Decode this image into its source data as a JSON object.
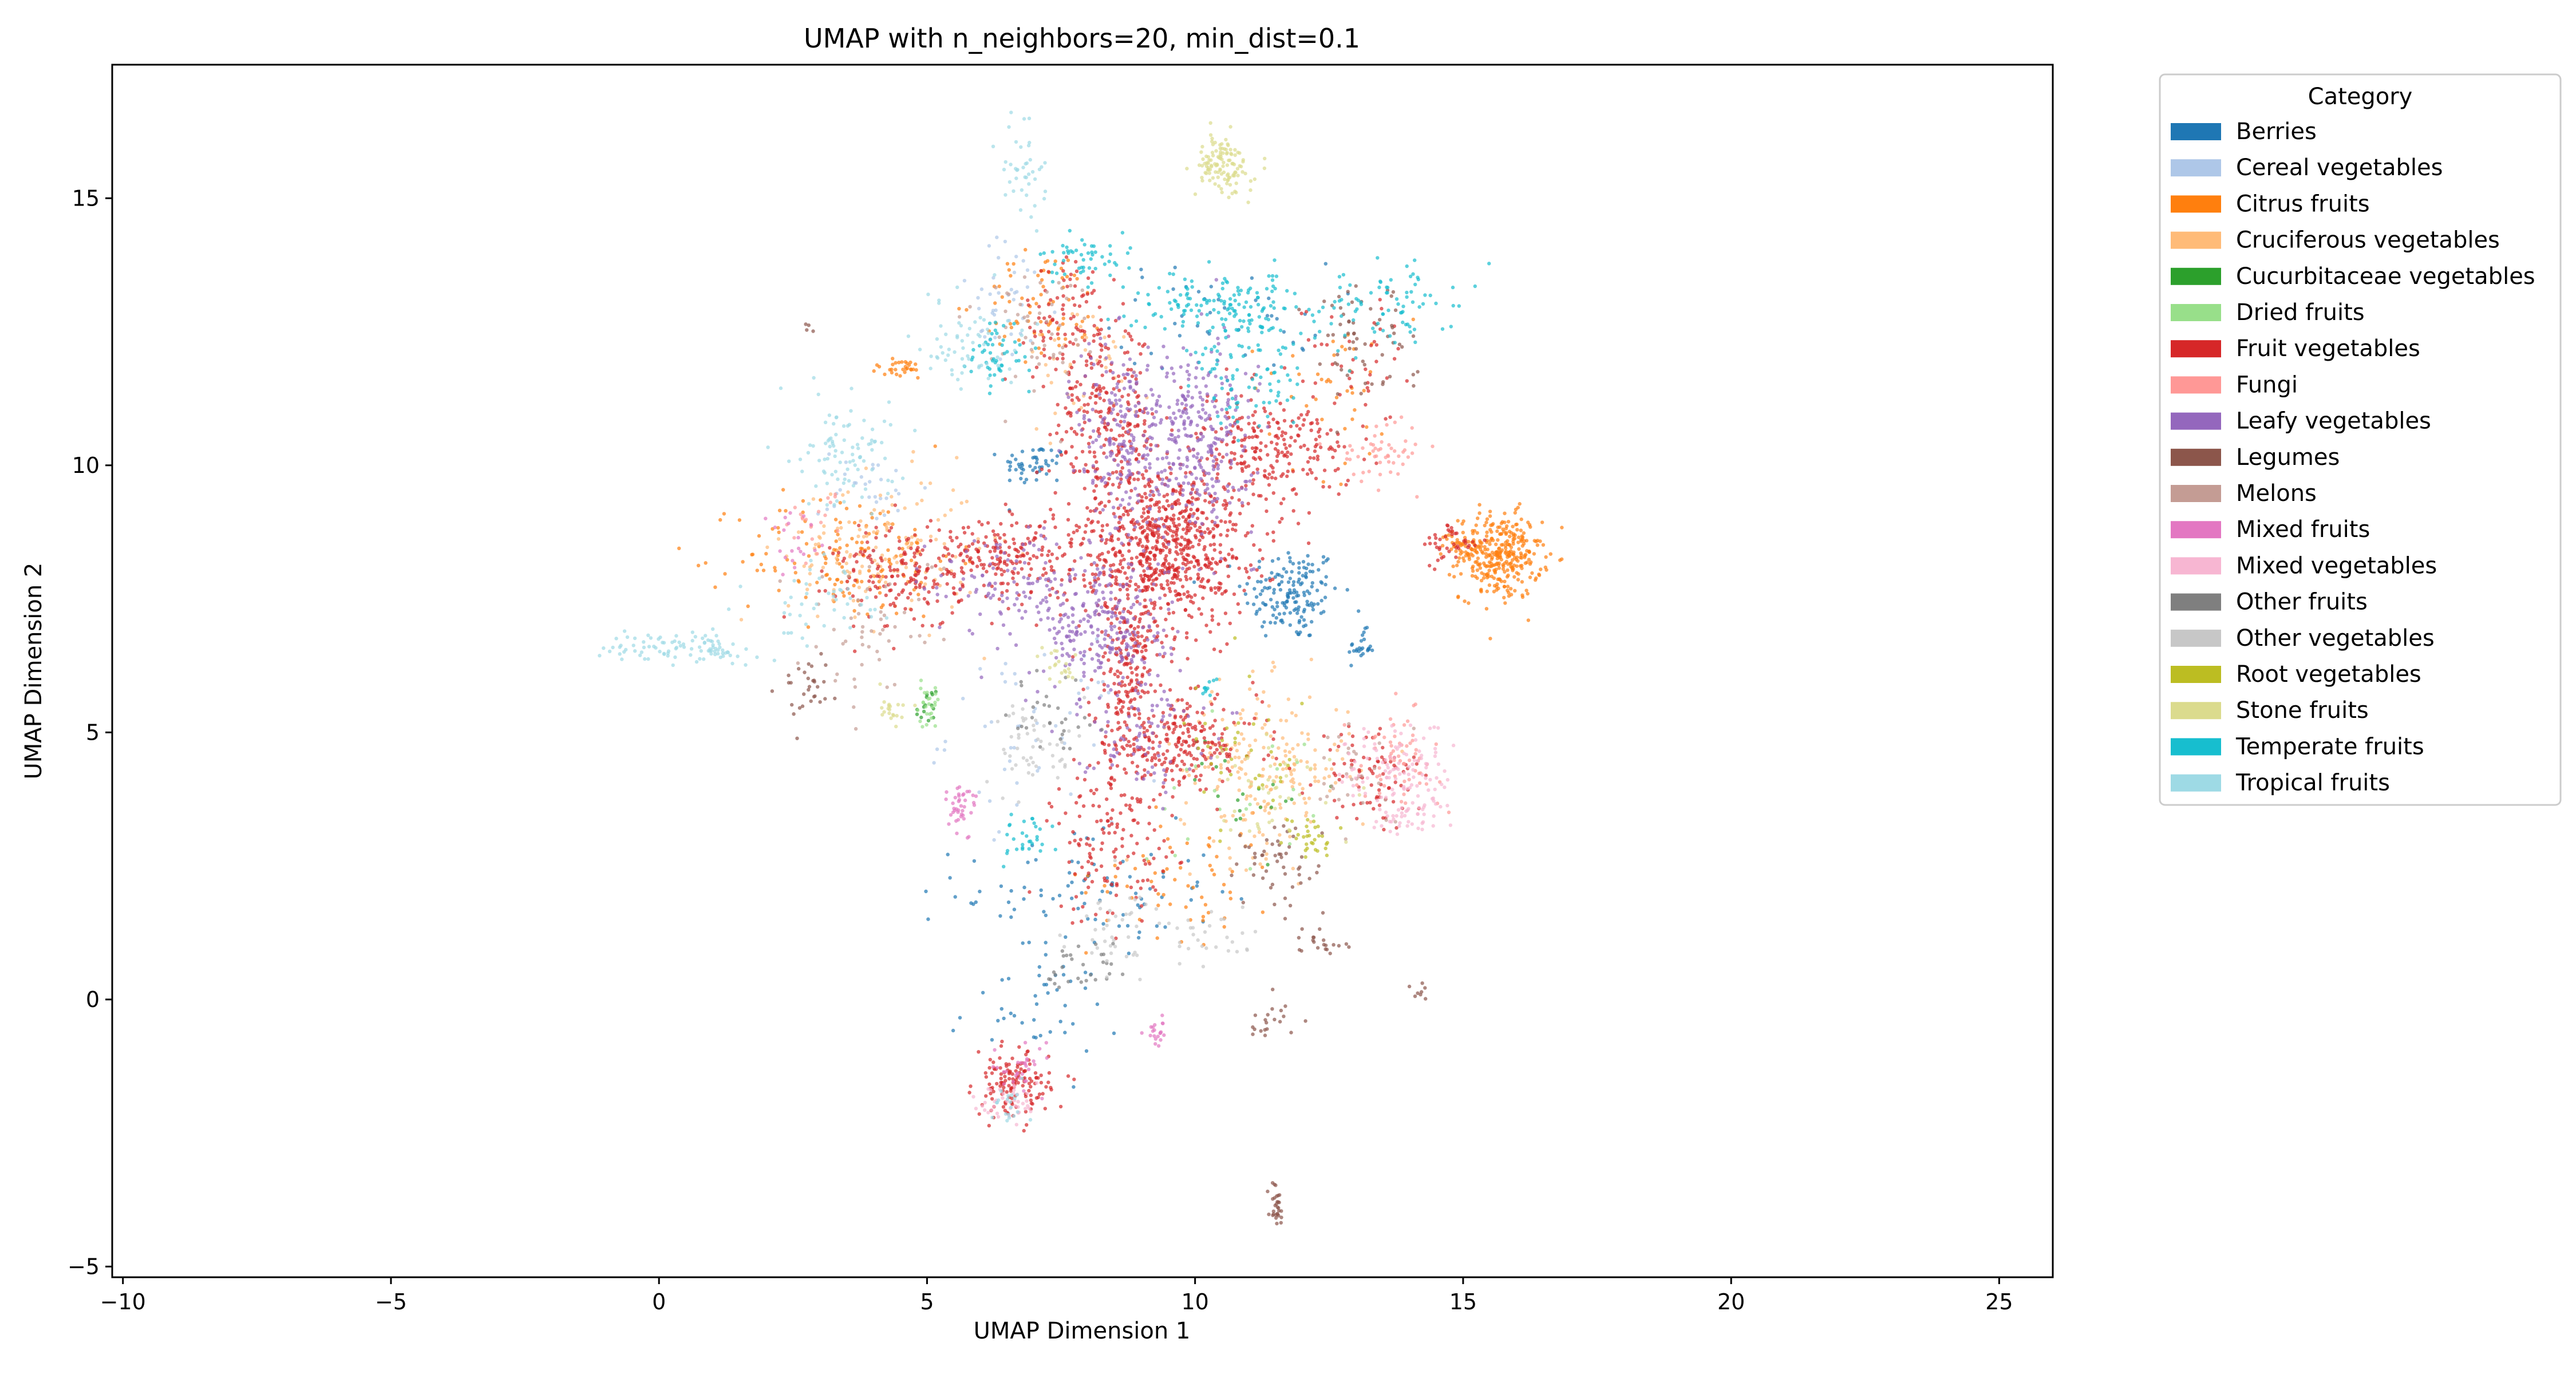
{
  "chart_data": {
    "type": "scatter",
    "title": "UMAP with n_neighbors=20, min_dist=0.1",
    "xlabel": "UMAP Dimension 1",
    "ylabel": "UMAP Dimension 2",
    "xlim": [
      -10.2,
      26
    ],
    "ylim": [
      -5.2,
      17.5
    ],
    "xticks": [
      -10,
      -5,
      0,
      5,
      10,
      15,
      20,
      25
    ],
    "yticks": [
      -5,
      0,
      5,
      10,
      15
    ],
    "grid": false,
    "legend": {
      "title": "Category",
      "placement": "outside-top-right"
    },
    "series": [
      {
        "name": "Berries",
        "color": "#1f77b4",
        "clusters": [
          {
            "c": [
              11.8,
              7.6
            ],
            "s": [
              0.45,
              0.45
            ],
            "n": 160
          },
          {
            "c": [
              7.0,
              10.0
            ],
            "s": [
              0.3,
              0.2
            ],
            "n": 50
          },
          {
            "c": [
              13.1,
              6.6
            ],
            "s": [
              0.12,
              0.15
            ],
            "n": 25
          },
          {
            "c": [
              8.0,
              2.0
            ],
            "s": [
              1.2,
              0.6
            ],
            "n": 90
          },
          {
            "c": [
              10.5,
              12.8
            ],
            "s": [
              1.0,
              0.5
            ],
            "n": 40
          },
          {
            "c": [
              7.0,
              -0.2
            ],
            "s": [
              0.8,
              0.5
            ],
            "n": 40
          }
        ]
      },
      {
        "name": "Cereal vegetables",
        "color": "#aec7e8",
        "clusters": [
          {
            "c": [
              7.0,
              5.0
            ],
            "s": [
              0.8,
              0.8
            ],
            "n": 50
          },
          {
            "c": [
              6.5,
              13.0
            ],
            "s": [
              0.5,
              0.6
            ],
            "n": 40
          },
          {
            "c": [
              4.0,
              9.5
            ],
            "s": [
              0.5,
              0.4
            ],
            "n": 30
          }
        ]
      },
      {
        "name": "Citrus fruits",
        "color": "#ff7f0e",
        "clusters": [
          {
            "c": [
              15.7,
              8.3
            ],
            "s": [
              0.38,
              0.4
            ],
            "n": 320
          },
          {
            "c": [
              15.0,
              8.5
            ],
            "s": [
              0.2,
              0.15
            ],
            "n": 40
          },
          {
            "c": [
              3.5,
              8.3
            ],
            "s": [
              1.0,
              0.6
            ],
            "n": 140
          },
          {
            "c": [
              4.5,
              11.8
            ],
            "s": [
              0.3,
              0.1
            ],
            "n": 30
          },
          {
            "c": [
              7.2,
              13.0
            ],
            "s": [
              0.6,
              0.5
            ],
            "n": 70
          },
          {
            "c": [
              9.8,
              2.3
            ],
            "s": [
              0.9,
              0.6
            ],
            "n": 60
          },
          {
            "c": [
              12.5,
              11.5
            ],
            "s": [
              0.8,
              0.8
            ],
            "n": 40
          }
        ]
      },
      {
        "name": "Cruciferous vegetables",
        "color": "#ffbb78",
        "clusters": [
          {
            "c": [
              11.3,
              4.3
            ],
            "s": [
              0.8,
              0.8
            ],
            "n": 200
          },
          {
            "c": [
              4.2,
              8.4
            ],
            "s": [
              0.9,
              0.7
            ],
            "n": 150
          },
          {
            "c": [
              8.0,
              12.0
            ],
            "s": [
              0.6,
              0.6
            ],
            "n": 40
          }
        ]
      },
      {
        "name": "Cucurbitaceae vegetables",
        "color": "#2ca02c",
        "clusters": [
          {
            "c": [
              5.0,
              5.4
            ],
            "s": [
              0.1,
              0.2
            ],
            "n": 15
          },
          {
            "c": [
              11.0,
              4.0
            ],
            "s": [
              0.6,
              0.6
            ],
            "n": 20
          }
        ]
      },
      {
        "name": "Dried fruits",
        "color": "#98df8a",
        "clusters": [
          {
            "c": [
              5.0,
              5.5
            ],
            "s": [
              0.12,
              0.2
            ],
            "n": 25
          },
          {
            "c": [
              10.5,
              4.0
            ],
            "s": [
              0.8,
              0.8
            ],
            "n": 20
          }
        ]
      },
      {
        "name": "Fruit vegetables",
        "color": "#d62728",
        "clusters": [
          {
            "c": [
              9.5,
              8.5
            ],
            "s": [
              0.75,
              0.75
            ],
            "n": 700
          },
          {
            "c": [
              8.8,
              6.2
            ],
            "s": [
              0.35,
              1.0
            ],
            "n": 250
          },
          {
            "c": [
              9.8,
              4.8
            ],
            "s": [
              0.7,
              0.4
            ],
            "n": 200
          },
          {
            "c": [
              8.3,
              10.8
            ],
            "s": [
              0.5,
              0.9
            ],
            "n": 250
          },
          {
            "c": [
              11.3,
              10.3
            ],
            "s": [
              0.8,
              0.5
            ],
            "n": 250
          },
          {
            "c": [
              6.5,
              8.3
            ],
            "s": [
              0.8,
              0.4
            ],
            "n": 220
          },
          {
            "c": [
              4.5,
              7.9
            ],
            "s": [
              0.6,
              0.5
            ],
            "n": 150
          },
          {
            "c": [
              8.5,
              3.0
            ],
            "s": [
              0.6,
              0.8
            ],
            "n": 150
          },
          {
            "c": [
              6.6,
              -1.6
            ],
            "s": [
              0.35,
              0.3
            ],
            "n": 140
          },
          {
            "c": [
              13.3,
              4.2
            ],
            "s": [
              0.5,
              0.5
            ],
            "n": 80
          },
          {
            "c": [
              14.8,
              8.5
            ],
            "s": [
              0.25,
              0.2
            ],
            "n": 40
          },
          {
            "c": [
              7.5,
              12.8
            ],
            "s": [
              0.4,
              0.6
            ],
            "n": 70
          },
          {
            "c": [
              13.0,
              12.0
            ],
            "s": [
              0.5,
              0.6
            ],
            "n": 40
          }
        ]
      },
      {
        "name": "Fungi",
        "color": "#ff9896",
        "clusters": [
          {
            "c": [
              13.8,
              4.5
            ],
            "s": [
              0.4,
              0.4
            ],
            "n": 60
          },
          {
            "c": [
              13.5,
              10.3
            ],
            "s": [
              0.4,
              0.3
            ],
            "n": 50
          },
          {
            "c": [
              3.0,
              9.0
            ],
            "s": [
              0.3,
              0.3
            ],
            "n": 20
          }
        ]
      },
      {
        "name": "Leafy vegetables",
        "color": "#9467bd",
        "clusters": [
          {
            "c": [
              10.0,
              10.5
            ],
            "s": [
              0.55,
              0.9
            ],
            "n": 300
          },
          {
            "c": [
              8.3,
              7.0
            ],
            "s": [
              0.6,
              0.7
            ],
            "n": 250
          },
          {
            "c": [
              8.6,
              10.5
            ],
            "s": [
              0.4,
              1.0
            ],
            "n": 180
          },
          {
            "c": [
              6.5,
              7.8
            ],
            "s": [
              0.7,
              0.5
            ],
            "n": 100
          },
          {
            "c": [
              9.0,
              5.0
            ],
            "s": [
              0.6,
              0.5
            ],
            "n": 80
          }
        ]
      },
      {
        "name": "Legumes",
        "color": "#8c564b",
        "clusters": [
          {
            "c": [
              11.5,
              -3.8
            ],
            "s": [
              0.07,
              0.18
            ],
            "n": 30
          },
          {
            "c": [
              12.4,
              1.1
            ],
            "s": [
              0.25,
              0.15
            ],
            "n": 20
          },
          {
            "c": [
              11.4,
              -0.4
            ],
            "s": [
              0.25,
              0.2
            ],
            "n": 20
          },
          {
            "c": [
              14.2,
              0.1
            ],
            "s": [
              0.1,
              0.1
            ],
            "n": 8
          },
          {
            "c": [
              2.8,
              5.8
            ],
            "s": [
              0.3,
              0.3
            ],
            "n": 30
          },
          {
            "c": [
              13.0,
              12.5
            ],
            "s": [
              0.5,
              0.6
            ],
            "n": 60
          },
          {
            "c": [
              11.5,
              2.5
            ],
            "s": [
              0.5,
              0.5
            ],
            "n": 50
          },
          {
            "c": [
              2.8,
              12.6
            ],
            "s": [
              0.05,
              0.05
            ],
            "n": 4
          }
        ]
      },
      {
        "name": "Melons",
        "color": "#c49c94",
        "clusters": [
          {
            "c": [
              7.0,
              12.5
            ],
            "s": [
              0.5,
              0.6
            ],
            "n": 50
          },
          {
            "c": [
              4.0,
              7.0
            ],
            "s": [
              0.7,
              0.7
            ],
            "n": 50
          },
          {
            "c": [
              13.0,
              4.2
            ],
            "s": [
              0.5,
              0.5
            ],
            "n": 30
          }
        ]
      },
      {
        "name": "Mixed fruits",
        "color": "#e377c2",
        "clusters": [
          {
            "c": [
              5.6,
              3.6
            ],
            "s": [
              0.15,
              0.25
            ],
            "n": 40
          },
          {
            "c": [
              9.3,
              -0.6
            ],
            "s": [
              0.1,
              0.15
            ],
            "n": 20
          },
          {
            "c": [
              6.8,
              -1.3
            ],
            "s": [
              0.3,
              0.3
            ],
            "n": 30
          },
          {
            "c": [
              2.5,
              8.5
            ],
            "s": [
              0.3,
              0.3
            ],
            "n": 20
          }
        ]
      },
      {
        "name": "Mixed vegetables",
        "color": "#f7b6d2",
        "clusters": [
          {
            "c": [
              13.8,
              4.2
            ],
            "s": [
              0.5,
              0.5
            ],
            "n": 120
          },
          {
            "c": [
              14.0,
              3.4
            ],
            "s": [
              0.3,
              0.15
            ],
            "n": 30
          },
          {
            "c": [
              6.5,
              -1.9
            ],
            "s": [
              0.3,
              0.2
            ],
            "n": 40
          }
        ]
      },
      {
        "name": "Other fruits",
        "color": "#7f7f7f",
        "clusters": [
          {
            "c": [
              8.0,
              0.6
            ],
            "s": [
              0.4,
              0.3
            ],
            "n": 30
          },
          {
            "c": [
              7.5,
              5.2
            ],
            "s": [
              0.5,
              0.5
            ],
            "n": 30
          }
        ]
      },
      {
        "name": "Other vegetables",
        "color": "#c7c7c7",
        "clusters": [
          {
            "c": [
              7.0,
              4.8
            ],
            "s": [
              0.4,
              0.4
            ],
            "n": 50
          },
          {
            "c": [
              8.5,
              1.2
            ],
            "s": [
              0.5,
              0.5
            ],
            "n": 40
          },
          {
            "c": [
              10.2,
              1.2
            ],
            "s": [
              0.5,
              0.3
            ],
            "n": 30
          }
        ]
      },
      {
        "name": "Root vegetables",
        "color": "#bcbd22",
        "clusters": [
          {
            "c": [
              12.2,
              3.0
            ],
            "s": [
              0.2,
              0.2
            ],
            "n": 30
          },
          {
            "c": [
              11.0,
              4.5
            ],
            "s": [
              0.6,
              0.6
            ],
            "n": 40
          }
        ]
      },
      {
        "name": "Stone fruits",
        "color": "#dbdb8d",
        "clusters": [
          {
            "c": [
              10.5,
              15.6
            ],
            "s": [
              0.25,
              0.28
            ],
            "n": 120
          },
          {
            "c": [
              4.3,
              5.4
            ],
            "s": [
              0.15,
              0.15
            ],
            "n": 20
          },
          {
            "c": [
              7.5,
              6.3
            ],
            "s": [
              0.2,
              0.2
            ],
            "n": 20
          },
          {
            "c": [
              11.5,
              4.0
            ],
            "s": [
              0.5,
              0.5
            ],
            "n": 40
          }
        ]
      },
      {
        "name": "Temperate fruits",
        "color": "#17becf",
        "clusters": [
          {
            "c": [
              10.5,
              13.0
            ],
            "s": [
              0.8,
              0.3
            ],
            "n": 150
          },
          {
            "c": [
              11.0,
              11.5
            ],
            "s": [
              0.6,
              0.5
            ],
            "n": 80
          },
          {
            "c": [
              8.0,
              13.8
            ],
            "s": [
              0.4,
              0.2
            ],
            "n": 50
          },
          {
            "c": [
              6.3,
              12.1
            ],
            "s": [
              0.3,
              0.4
            ],
            "n": 50
          },
          {
            "c": [
              13.5,
              13.0
            ],
            "s": [
              0.7,
              0.4
            ],
            "n": 80
          },
          {
            "c": [
              7.0,
              3.0
            ],
            "s": [
              0.3,
              0.2
            ],
            "n": 30
          },
          {
            "c": [
              10.2,
              5.8
            ],
            "s": [
              0.1,
              0.1
            ],
            "n": 10
          }
        ]
      },
      {
        "name": "Tropical fruits",
        "color": "#9edae5",
        "clusters": [
          {
            "c": [
              0.5,
              6.6
            ],
            "s": [
              0.7,
              0.15
            ],
            "n": 100
          },
          {
            "c": [
              3.5,
              10.3
            ],
            "s": [
              0.45,
              0.6
            ],
            "n": 90
          },
          {
            "c": [
              6.8,
              15.5
            ],
            "s": [
              0.2,
              0.5
            ],
            "n": 40
          },
          {
            "c": [
              5.8,
              12.3
            ],
            "s": [
              0.5,
              0.4
            ],
            "n": 60
          },
          {
            "c": [
              6.5,
              -2.0
            ],
            "s": [
              0.2,
              0.2
            ],
            "n": 20
          },
          {
            "c": [
              3.0,
              7.5
            ],
            "s": [
              0.6,
              0.4
            ],
            "n": 40
          }
        ]
      }
    ]
  }
}
